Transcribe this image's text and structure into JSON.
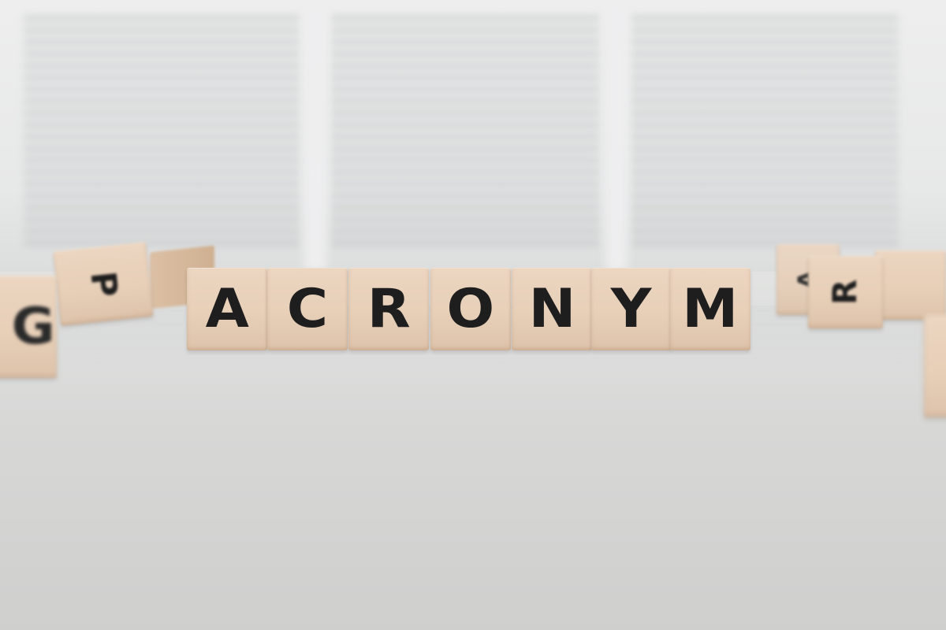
{
  "word_tiles": [
    "A",
    "C",
    "R",
    "O",
    "N",
    "Y",
    "M"
  ],
  "scattered_tiles": {
    "left_near": "G",
    "left_far": "P",
    "right_front": "R",
    "right_back": "A",
    "right_far": ""
  },
  "colors": {
    "wood": "#e7cfb8",
    "letter": "#1e1e1e",
    "table": "#d6d6d5",
    "newspaper_text": "#b9bcbe"
  }
}
